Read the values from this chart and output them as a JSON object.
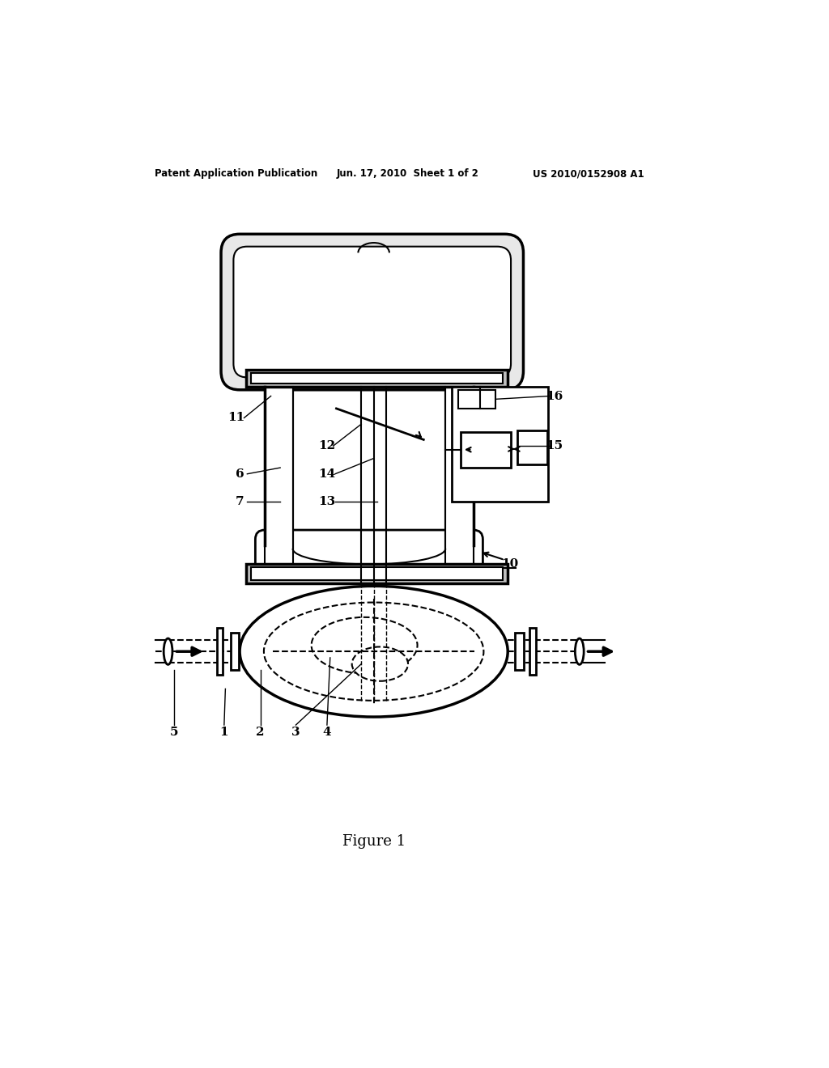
{
  "header_left": "Patent Application Publication",
  "header_center": "Jun. 17, 2010  Sheet 1 of 2",
  "header_right": "US 2010/0152908 A1",
  "figure_label": "Figure 1",
  "bg": "#ffffff",
  "lc": "#000000"
}
